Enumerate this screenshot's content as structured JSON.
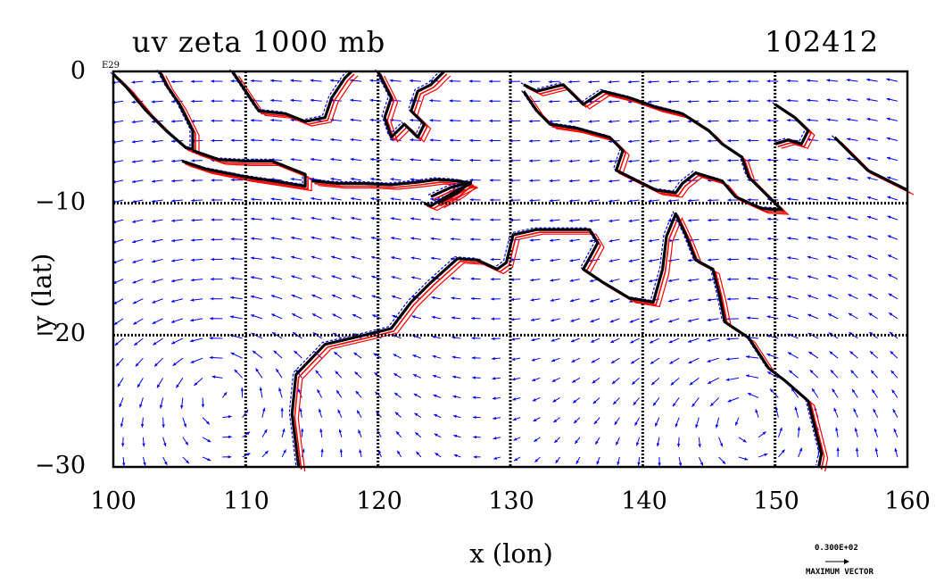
{
  "chart_data": {
    "type": "vector_field_map",
    "title_left": "uv zeta 1000 mb",
    "title_right": "102412",
    "xlabel": "x (lon)",
    "ylabel": "y (lat)",
    "xlim": [
      100,
      160
    ],
    "ylim": [
      -30,
      0
    ],
    "x_ticks": [
      "100",
      "110",
      "120",
      "130",
      "140",
      "150",
      "160"
    ],
    "y_ticks": [
      "0",
      "−10",
      "−20",
      "−30"
    ],
    "x_tick_values": [
      100,
      110,
      120,
      130,
      140,
      150,
      160
    ],
    "y_tick_values": [
      0,
      -10,
      -20,
      -30
    ],
    "corner_label": "E29",
    "grid": true,
    "max_vector_value": "0.300E+02",
    "max_vector_label": "MAXIMUM VECTOR",
    "colors": {
      "coast": "#000000",
      "vectors": "#0000ff",
      "positive_contour": "#ff0000",
      "negative_contour": "#0000ff",
      "grid": "#000000"
    },
    "coastlines": [
      {
        "name": "Australia",
        "points": [
          [
            114,
            -30
          ],
          [
            113.5,
            -26
          ],
          [
            113.8,
            -23
          ],
          [
            116,
            -20.7
          ],
          [
            119,
            -20
          ],
          [
            121,
            -19.5
          ],
          [
            122.5,
            -17.5
          ],
          [
            124,
            -16
          ],
          [
            126,
            -14.2
          ],
          [
            127.5,
            -14.3
          ],
          [
            129,
            -15
          ],
          [
            129.7,
            -14.5
          ],
          [
            130.2,
            -12.4
          ],
          [
            132,
            -12
          ],
          [
            134,
            -12
          ],
          [
            136,
            -12
          ],
          [
            136.6,
            -13
          ],
          [
            135.8,
            -14.5
          ],
          [
            135.5,
            -15
          ],
          [
            137,
            -16
          ],
          [
            139,
            -17.2
          ],
          [
            140.8,
            -17.5
          ],
          [
            141.5,
            -15
          ],
          [
            141.8,
            -12.5
          ],
          [
            142.5,
            -10.8
          ],
          [
            143.3,
            -12.5
          ],
          [
            144,
            -14.3
          ],
          [
            145.3,
            -15
          ],
          [
            145.8,
            -17
          ],
          [
            146.2,
            -19
          ],
          [
            148,
            -20.2
          ],
          [
            149.5,
            -22.5
          ],
          [
            150.8,
            -23.5
          ],
          [
            152.5,
            -25
          ],
          [
            153,
            -27
          ],
          [
            153.5,
            -29
          ],
          [
            153.3,
            -30
          ]
        ]
      },
      {
        "name": "Sumatra",
        "points": [
          [
            100,
            -0.2
          ],
          [
            101,
            -1.2
          ],
          [
            102.5,
            -3
          ],
          [
            104,
            -4.5
          ],
          [
            105.5,
            -5.8
          ],
          [
            106,
            -5.9
          ],
          [
            106,
            -4.5
          ],
          [
            105,
            -2.5
          ],
          [
            104,
            -1
          ],
          [
            103.5,
            0
          ]
        ]
      },
      {
        "name": "Java",
        "points": [
          [
            106,
            -6
          ],
          [
            108,
            -6.7
          ],
          [
            110,
            -6.8
          ],
          [
            112,
            -6.8
          ],
          [
            114.5,
            -7.8
          ],
          [
            114.5,
            -8.7
          ],
          [
            112,
            -8.3
          ],
          [
            110,
            -8
          ],
          [
            107,
            -7.4
          ],
          [
            105.2,
            -6.8
          ]
        ]
      },
      {
        "name": "Lesser Sunda",
        "points": [
          [
            115,
            -8.3
          ],
          [
            117,
            -8.5
          ],
          [
            119,
            -8.5
          ],
          [
            121,
            -8.6
          ],
          [
            123,
            -8.4
          ],
          [
            124.5,
            -8.2
          ],
          [
            126,
            -8.3
          ],
          [
            127,
            -8.5
          ],
          [
            126,
            -9
          ],
          [
            124,
            -10.2
          ],
          [
            123.5,
            -10
          ]
        ]
      },
      {
        "name": "Borneo",
        "points": [
          [
            109,
            0
          ],
          [
            110,
            -1.5
          ],
          [
            111,
            -3
          ],
          [
            113,
            -3.2
          ],
          [
            114.5,
            -3.8
          ],
          [
            116,
            -3.5
          ],
          [
            116.5,
            -2
          ],
          [
            117.5,
            -0.5
          ],
          [
            118,
            0
          ]
        ]
      },
      {
        "name": "Sulawesi",
        "points": [
          [
            120,
            0
          ],
          [
            120.5,
            -1
          ],
          [
            121,
            -2
          ],
          [
            120.5,
            -3.5
          ],
          [
            121,
            -5
          ],
          [
            122,
            -4
          ],
          [
            123,
            -5
          ],
          [
            123.5,
            -4
          ],
          [
            122.5,
            -3
          ],
          [
            123,
            -1.5
          ],
          [
            124,
            -1
          ],
          [
            125,
            0
          ]
        ]
      },
      {
        "name": "New Guinea",
        "points": [
          [
            131,
            -1
          ],
          [
            132,
            -1.5
          ],
          [
            134,
            -1
          ],
          [
            135.5,
            -2.5
          ],
          [
            137,
            -1.5
          ],
          [
            139,
            -2
          ],
          [
            141,
            -2.7
          ],
          [
            143,
            -3.2
          ],
          [
            145,
            -4.5
          ],
          [
            146,
            -5.5
          ],
          [
            147.5,
            -6.5
          ],
          [
            148,
            -8
          ],
          [
            149,
            -9
          ],
          [
            150.5,
            -10.5
          ],
          [
            149,
            -10.4
          ],
          [
            147,
            -9.5
          ],
          [
            146,
            -8.3
          ],
          [
            144,
            -7.7
          ],
          [
            143,
            -8.5
          ],
          [
            142.5,
            -9.2
          ],
          [
            141,
            -9
          ],
          [
            139,
            -8
          ],
          [
            138,
            -7.5
          ],
          [
            138.5,
            -6
          ],
          [
            137.5,
            -5
          ],
          [
            135,
            -4.3
          ],
          [
            133,
            -4
          ],
          [
            132,
            -3
          ],
          [
            131,
            -1.5
          ]
        ]
      },
      {
        "name": "Timor",
        "points": [
          [
            124,
            -9.5
          ],
          [
            125.5,
            -8.8
          ],
          [
            127,
            -8.4
          ],
          [
            126,
            -9.2
          ],
          [
            124.5,
            -10
          ]
        ]
      },
      {
        "name": "Bismarck",
        "points": [
          [
            150,
            -2.5
          ],
          [
            151.5,
            -3.5
          ],
          [
            152.5,
            -4.5
          ],
          [
            152,
            -5.5
          ],
          [
            151,
            -5.2
          ],
          [
            150,
            -5.5
          ]
        ]
      },
      {
        "name": "Solomons",
        "points": [
          [
            154.5,
            -5
          ],
          [
            155.5,
            -6
          ],
          [
            157,
            -7.5
          ],
          [
            159,
            -8.5
          ],
          [
            160,
            -9
          ]
        ]
      }
    ]
  }
}
